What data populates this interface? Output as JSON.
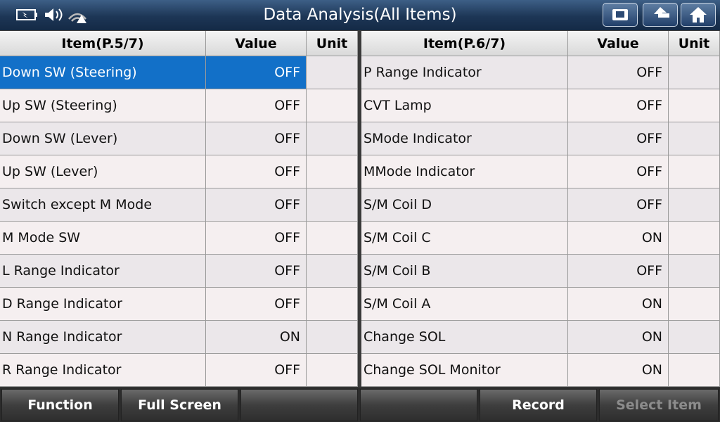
{
  "header": {
    "title": "Data Analysis(All Items)"
  },
  "tables": [
    {
      "columns": [
        "Item(P.5/7)",
        "Value",
        "Unit"
      ],
      "rows": [
        {
          "item": "Down SW (Steering)",
          "value": "OFF"
        },
        {
          "item": "Up SW (Steering)",
          "value": "OFF"
        },
        {
          "item": "Down SW (Lever)",
          "value": "OFF"
        },
        {
          "item": "Up SW (Lever)",
          "value": "OFF"
        },
        {
          "item": "Switch except M Mode",
          "value": "OFF"
        },
        {
          "item": "M Mode SW",
          "value": "OFF"
        },
        {
          "item": "L Range Indicator",
          "value": "OFF"
        },
        {
          "item": "D Range Indicator",
          "value": "OFF"
        },
        {
          "item": "N Range Indicator",
          "value": "ON"
        },
        {
          "item": "R Range Indicator",
          "value": "OFF"
        }
      ]
    },
    {
      "columns": [
        "Item(P.6/7)",
        "Value",
        "Unit"
      ],
      "rows": [
        {
          "item": "P Range Indicator",
          "value": "OFF"
        },
        {
          "item": "CVT Lamp",
          "value": "OFF"
        },
        {
          "item": "SMode Indicator",
          "value": "OFF"
        },
        {
          "item": "MMode Indicator",
          "value": "OFF"
        },
        {
          "item": "S/M Coil D",
          "value": "OFF"
        },
        {
          "item": "S/M Coil C",
          "value": "ON"
        },
        {
          "item": "S/M Coil B",
          "value": "OFF"
        },
        {
          "item": "S/M Coil A",
          "value": "ON"
        },
        {
          "item": "Change SOL",
          "value": "ON"
        },
        {
          "item": "Change SOL Monitor",
          "value": "ON"
        }
      ]
    }
  ],
  "toolbar": {
    "function": "Function",
    "full_screen": "Full Screen",
    "record": "Record",
    "select_item": "Select Item"
  }
}
